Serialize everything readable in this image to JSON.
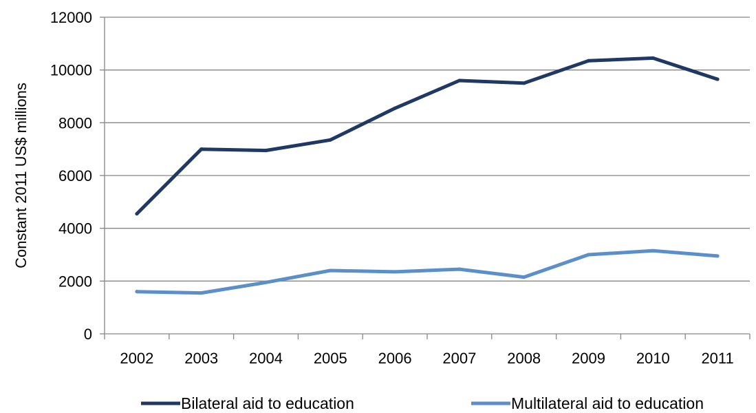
{
  "chart_data": {
    "type": "line",
    "title": "",
    "xlabel": "",
    "ylabel": "Constant 2011 US$ millions",
    "categories": [
      "2002",
      "2003",
      "2004",
      "2005",
      "2006",
      "2007",
      "2008",
      "2009",
      "2010",
      "2011"
    ],
    "ylim": [
      0,
      12000
    ],
    "yticks": [
      0,
      2000,
      4000,
      6000,
      8000,
      10000,
      12000
    ],
    "ytick_labels": [
      "0",
      "2000",
      "4000",
      "6000",
      "8000",
      "10000",
      "12000"
    ],
    "grid": "horizontal",
    "legend_position": "bottom",
    "series": [
      {
        "name": "Bilateral aid to education",
        "color": "#1f3864",
        "values": [
          4550,
          7000,
          6950,
          7350,
          8550,
          9600,
          9500,
          10350,
          10450,
          9650
        ]
      },
      {
        "name": "Multilateral aid to education",
        "color": "#5b8fc9",
        "values": [
          1600,
          1550,
          1950,
          2400,
          2350,
          2450,
          2150,
          3000,
          3150,
          2950
        ]
      }
    ]
  }
}
